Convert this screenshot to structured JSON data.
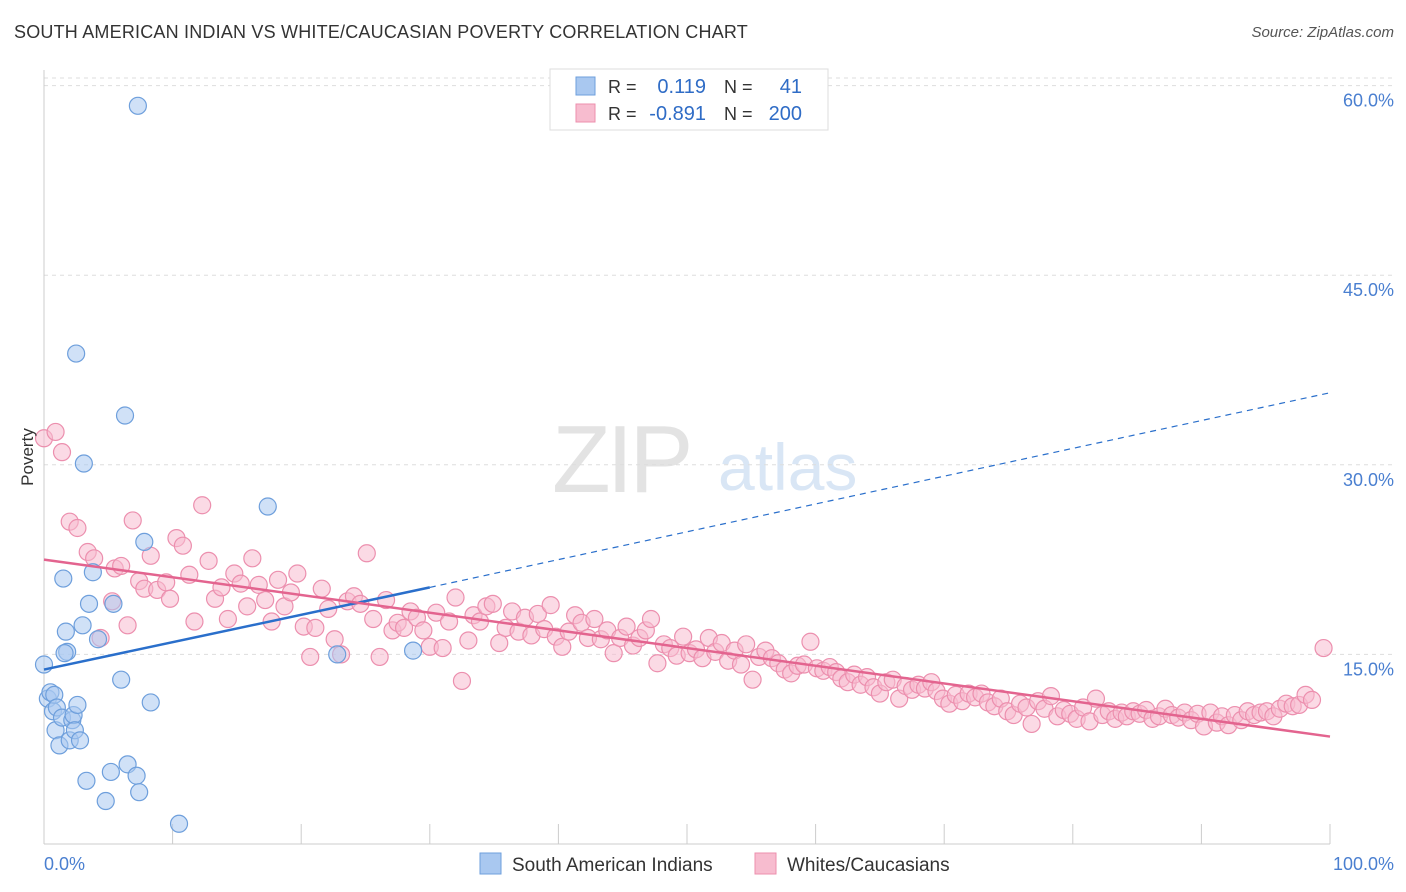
{
  "header": {
    "title": "SOUTH AMERICAN INDIAN VS WHITE/CAUCASIAN POVERTY CORRELATION CHART",
    "source": "Source: ZipAtlas.com"
  },
  "watermark": {
    "zip": "ZIP",
    "atlas": "atlas"
  },
  "colors": {
    "blue_fill": "#a9c8f0",
    "blue_stroke": "#6e9fdc",
    "blue_line": "#2a6fcb",
    "pink_fill": "#f7bccf",
    "pink_stroke": "#ec8fae",
    "pink_line": "#e3648f",
    "tick_label": "#4a7fd0"
  },
  "legend_top": {
    "rows": [
      {
        "r_label": "R =",
        "r_value": "0.119",
        "n_label": "N =",
        "n_value": "41"
      },
      {
        "r_label": "R =",
        "r_value": "-0.891",
        "n_label": "N =",
        "n_value": "200"
      }
    ]
  },
  "legend_bottom": {
    "items": [
      "South American Indians",
      "Whites/Caucasians"
    ]
  },
  "chart_data": {
    "type": "scatter",
    "ylabel": "Poverty",
    "x_tick_labels": [
      "0.0%",
      "100.0%"
    ],
    "y_tick_labels": [
      "15.0%",
      "30.0%",
      "45.0%",
      "60.0%"
    ],
    "y_ticks": [
      15,
      30,
      45,
      60
    ],
    "xlim": [
      0,
      100
    ],
    "ylim": [
      0,
      62.5
    ],
    "grid": "horizontal dashed",
    "series": [
      {
        "name": "South American Indians",
        "color": "#a9c8f0",
        "trend": {
          "x": [
            0,
            30
          ],
          "y": [
            13.8,
            20.3
          ],
          "extended_to": [
            100,
            35.7
          ]
        },
        "points": [
          [
            0,
            14.2
          ],
          [
            0.3,
            11.5
          ],
          [
            0.5,
            12
          ],
          [
            0.7,
            10.5
          ],
          [
            0.8,
            11.8
          ],
          [
            0.9,
            9
          ],
          [
            1,
            10.8
          ],
          [
            1.2,
            7.8
          ],
          [
            1.4,
            10
          ],
          [
            1.5,
            21
          ],
          [
            1.7,
            16.8
          ],
          [
            1.8,
            15.2
          ],
          [
            2,
            8.2
          ],
          [
            2.2,
            9.8
          ],
          [
            2.3,
            10.2
          ],
          [
            2.4,
            9
          ],
          [
            2.5,
            38.8
          ],
          [
            2.6,
            11
          ],
          [
            2.8,
            8.2
          ],
          [
            3,
            17.3
          ],
          [
            3.1,
            30.1
          ],
          [
            3.3,
            5
          ],
          [
            3.5,
            19
          ],
          [
            3.8,
            21.5
          ],
          [
            4.2,
            16.2
          ],
          [
            4.8,
            3.4
          ],
          [
            5.2,
            5.7
          ],
          [
            5.4,
            19
          ],
          [
            6,
            13
          ],
          [
            6.5,
            6.3
          ],
          [
            6.3,
            33.9
          ],
          [
            7.2,
            5.4
          ],
          [
            7.4,
            4.1
          ],
          [
            7.3,
            58.4
          ],
          [
            7.8,
            23.9
          ],
          [
            8.3,
            11.2
          ],
          [
            10.5,
            1.6
          ],
          [
            17.4,
            26.7
          ],
          [
            22.8,
            15
          ],
          [
            28.7,
            15.3
          ],
          [
            1.6,
            15.1
          ]
        ]
      },
      {
        "name": "Whites/Caucasians",
        "color": "#f7bccf",
        "trend": {
          "x": [
            0,
            100
          ],
          "y": [
            22.5,
            8.5
          ]
        },
        "points": [
          [
            0,
            32.1
          ],
          [
            0.9,
            32.6
          ],
          [
            1.4,
            31
          ],
          [
            2,
            25.5
          ],
          [
            2.6,
            25
          ],
          [
            3.4,
            23.1
          ],
          [
            3.9,
            22.6
          ],
          [
            4.4,
            16.3
          ],
          [
            5.3,
            19.2
          ],
          [
            5.5,
            21.8
          ],
          [
            6,
            22
          ],
          [
            6.5,
            17.3
          ],
          [
            6.9,
            25.6
          ],
          [
            7.4,
            20.8
          ],
          [
            7.8,
            20.2
          ],
          [
            8.3,
            22.8
          ],
          [
            8.8,
            20.1
          ],
          [
            9.5,
            20.7
          ],
          [
            9.8,
            19.4
          ],
          [
            10.3,
            24.2
          ],
          [
            10.8,
            23.6
          ],
          [
            11.3,
            21.3
          ],
          [
            11.7,
            17.6
          ],
          [
            12.3,
            26.8
          ],
          [
            12.8,
            22.4
          ],
          [
            13.3,
            19.4
          ],
          [
            13.8,
            20.3
          ],
          [
            14.3,
            17.8
          ],
          [
            14.8,
            21.4
          ],
          [
            15.3,
            20.6
          ],
          [
            15.8,
            18.8
          ],
          [
            16.2,
            22.6
          ],
          [
            16.7,
            20.5
          ],
          [
            17.2,
            19.3
          ],
          [
            17.7,
            17.6
          ],
          [
            18.2,
            20.9
          ],
          [
            18.7,
            18.8
          ],
          [
            19.2,
            19.9
          ],
          [
            19.7,
            21.4
          ],
          [
            20.2,
            17.2
          ],
          [
            20.7,
            14.8
          ],
          [
            21.1,
            17.1
          ],
          [
            21.6,
            20.2
          ],
          [
            22.1,
            18.6
          ],
          [
            22.6,
            16.2
          ],
          [
            23.1,
            15
          ],
          [
            23.6,
            19.2
          ],
          [
            24.1,
            19.6
          ],
          [
            24.6,
            19
          ],
          [
            25.1,
            23
          ],
          [
            25.6,
            17.8
          ],
          [
            26.1,
            14.8
          ],
          [
            26.6,
            19.3
          ],
          [
            27.1,
            16.9
          ],
          [
            27.5,
            17.5
          ],
          [
            28,
            17.1
          ],
          [
            28.5,
            18.4
          ],
          [
            29,
            17.9
          ],
          [
            29.5,
            16.9
          ],
          [
            30,
            15.6
          ],
          [
            30.5,
            18.3
          ],
          [
            31,
            15.5
          ],
          [
            31.5,
            17.6
          ],
          [
            32,
            19.5
          ],
          [
            32.5,
            12.9
          ],
          [
            33,
            16.1
          ],
          [
            33.4,
            18.1
          ],
          [
            33.9,
            17.6
          ],
          [
            34.4,
            18.8
          ],
          [
            34.9,
            19
          ],
          [
            35.4,
            15.9
          ],
          [
            35.9,
            17.1
          ],
          [
            36.4,
            18.4
          ],
          [
            36.9,
            16.8
          ],
          [
            37.4,
            17.9
          ],
          [
            37.9,
            16.5
          ],
          [
            38.4,
            18.2
          ],
          [
            38.9,
            17
          ],
          [
            39.4,
            18.9
          ],
          [
            39.8,
            16.4
          ],
          [
            40.3,
            15.6
          ],
          [
            40.8,
            16.8
          ],
          [
            41.3,
            18.1
          ],
          [
            41.8,
            17.5
          ],
          [
            42.3,
            16.3
          ],
          [
            42.8,
            17.8
          ],
          [
            43.3,
            16.2
          ],
          [
            43.8,
            16.9
          ],
          [
            44.3,
            15.1
          ],
          [
            44.8,
            16.3
          ],
          [
            45.3,
            17.2
          ],
          [
            45.8,
            15.7
          ],
          [
            46.3,
            16.3
          ],
          [
            46.8,
            16.9
          ],
          [
            47.2,
            17.8
          ],
          [
            47.7,
            14.3
          ],
          [
            48.2,
            15.8
          ],
          [
            48.7,
            15.5
          ],
          [
            49.2,
            14.9
          ],
          [
            49.7,
            16.4
          ],
          [
            50.2,
            15.1
          ],
          [
            50.7,
            15.4
          ],
          [
            51.2,
            14.7
          ],
          [
            51.7,
            16.3
          ],
          [
            52.2,
            15.2
          ],
          [
            52.7,
            15.9
          ],
          [
            53.2,
            14.5
          ],
          [
            53.7,
            15.3
          ],
          [
            54.2,
            14.2
          ],
          [
            54.6,
            15.8
          ],
          [
            55.1,
            13
          ],
          [
            55.6,
            14.8
          ],
          [
            56.1,
            15.3
          ],
          [
            56.6,
            14.7
          ],
          [
            57.1,
            14.3
          ],
          [
            57.6,
            13.8
          ],
          [
            58.1,
            13.5
          ],
          [
            58.6,
            14.1
          ],
          [
            59.1,
            14.2
          ],
          [
            59.6,
            16
          ],
          [
            60.1,
            13.9
          ],
          [
            60.6,
            13.7
          ],
          [
            61.1,
            14
          ],
          [
            61.6,
            13.6
          ],
          [
            62,
            13.1
          ],
          [
            62.5,
            12.8
          ],
          [
            63,
            13.4
          ],
          [
            63.5,
            12.6
          ],
          [
            64,
            13.2
          ],
          [
            64.5,
            12.4
          ],
          [
            65,
            11.9
          ],
          [
            65.5,
            12.8
          ],
          [
            66,
            13
          ],
          [
            66.5,
            11.5
          ],
          [
            67,
            12.5
          ],
          [
            67.5,
            12.2
          ],
          [
            68,
            12.6
          ],
          [
            68.5,
            12.3
          ],
          [
            69,
            12.8
          ],
          [
            69.4,
            12.1
          ],
          [
            69.9,
            11.5
          ],
          [
            70.4,
            11.1
          ],
          [
            70.9,
            11.8
          ],
          [
            71.4,
            11.3
          ],
          [
            71.9,
            11.9
          ],
          [
            72.4,
            11.6
          ],
          [
            72.9,
            11.9
          ],
          [
            73.4,
            11.2
          ],
          [
            73.9,
            10.9
          ],
          [
            74.4,
            11.5
          ],
          [
            74.9,
            10.5
          ],
          [
            75.4,
            10.2
          ],
          [
            75.9,
            11.1
          ],
          [
            76.4,
            10.8
          ],
          [
            76.8,
            9.5
          ],
          [
            77.3,
            11.3
          ],
          [
            77.8,
            10.7
          ],
          [
            78.3,
            11.7
          ],
          [
            78.8,
            10.1
          ],
          [
            79.3,
            10.6
          ],
          [
            79.8,
            10.3
          ],
          [
            80.3,
            9.9
          ],
          [
            80.8,
            10.8
          ],
          [
            81.3,
            9.7
          ],
          [
            81.8,
            11.5
          ],
          [
            82.3,
            10.2
          ],
          [
            82.8,
            10.5
          ],
          [
            83.3,
            9.9
          ],
          [
            83.8,
            10.4
          ],
          [
            84.2,
            10.1
          ],
          [
            84.7,
            10.5
          ],
          [
            85.2,
            10.3
          ],
          [
            85.7,
            10.6
          ],
          [
            86.2,
            9.9
          ],
          [
            86.7,
            10.1
          ],
          [
            87.2,
            10.7
          ],
          [
            87.7,
            10.2
          ],
          [
            88.2,
            10
          ],
          [
            88.7,
            10.4
          ],
          [
            89.2,
            9.8
          ],
          [
            89.7,
            10.3
          ],
          [
            90.2,
            9.3
          ],
          [
            90.7,
            10.4
          ],
          [
            91.2,
            9.6
          ],
          [
            91.6,
            10.1
          ],
          [
            92.1,
            9.4
          ],
          [
            92.6,
            10.2
          ],
          [
            93.1,
            9.8
          ],
          [
            93.6,
            10.5
          ],
          [
            94.1,
            10.2
          ],
          [
            94.6,
            10.4
          ],
          [
            95.1,
            10.5
          ],
          [
            95.6,
            10.1
          ],
          [
            96.1,
            10.7
          ],
          [
            96.6,
            11.1
          ],
          [
            97.1,
            10.9
          ],
          [
            97.6,
            11
          ],
          [
            98.1,
            11.8
          ],
          [
            98.6,
            11.4
          ],
          [
            99.5,
            15.5
          ]
        ]
      }
    ]
  }
}
